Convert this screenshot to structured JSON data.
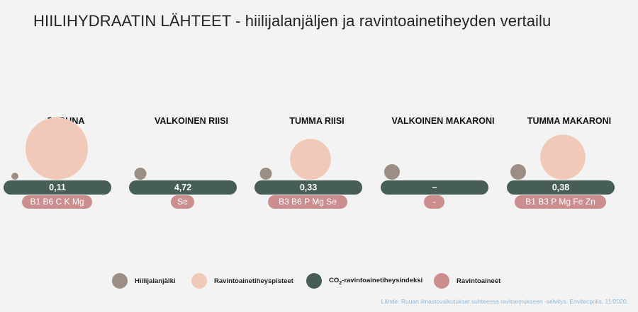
{
  "title": "HIILIHYDRAATIN LÄHTEET - hiilijalanjäljen ja ravintoainetiheyden vertailu",
  "colors": {
    "background": "#f4f3f3",
    "hiilijalanjalki": "#9c8e84",
    "ravintoainetiheyspisteet": "#f1c9b9",
    "co2_indeksi": "#465e55",
    "ravintoaineet": "#cc8d8e"
  },
  "chart_data": {
    "type": "bubble",
    "categories": [
      "PERUNA",
      "VALKOINEN RIISI",
      "TUMMA RIISI",
      "VALKOINEN MAKARONI",
      "TUMMA MAKARONI"
    ],
    "series": [
      {
        "name": "Hiilijalanjälki",
        "values": [
          0.2,
          0.6,
          0.6,
          1.0,
          1.0
        ]
      },
      {
        "name": "Ravintoainetiheyspisteet",
        "values": [
          21,
          0,
          9,
          0,
          11
        ]
      },
      {
        "name": "CO₂-ravintoainetiheysindeksi",
        "labels": [
          "0,11",
          "4,72",
          "0,33",
          "–",
          "0,38"
        ]
      },
      {
        "name": "Ravintoaineet",
        "labels": [
          "B1 B6 C K Mg",
          "Se",
          "B3 B6 P Mg Se",
          "-",
          "B1 B3 P Mg Fe Zn"
        ]
      }
    ]
  },
  "legend": {
    "hiilijalanjalki": "Hiilijalanjälki",
    "ravintoainetiheyspisteet": "Ravintoainetiheyspisteet",
    "co2_prefix": "CO",
    "co2_sub": "2",
    "co2_suffix": "-ravintoainetiheysindeksi",
    "ravintoaineet": "Ravintoaineet"
  },
  "source": "Lähde: Ruuan ilmastovaikutukset suhteessa ravitsemukseen -selvitys. Envitecpolis, 11/2020."
}
